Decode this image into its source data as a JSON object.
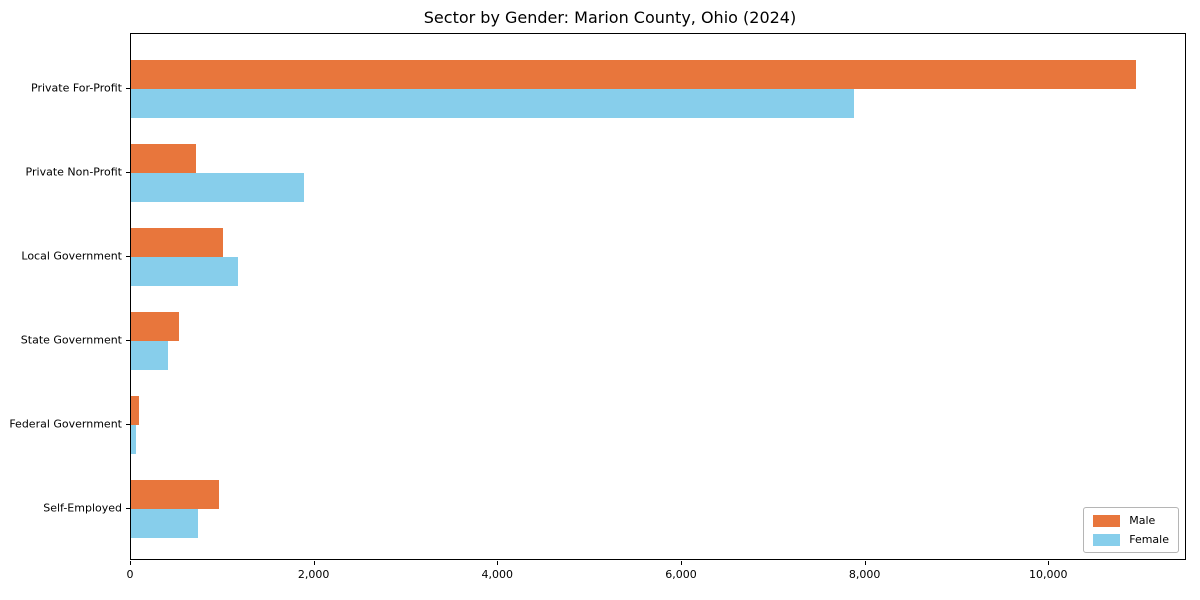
{
  "chart_data": {
    "type": "bar",
    "orientation": "horizontal",
    "title": "Sector by Gender: Marion County, Ohio (2024)",
    "categories": [
      "Private For-Profit",
      "Private Non-Profit",
      "Local Government",
      "State Government",
      "Federal Government",
      "Self-Employed"
    ],
    "series": [
      {
        "name": "Male",
        "color": "#e8763c",
        "values": [
          10940,
          710,
          1000,
          525,
          85,
          960
        ]
      },
      {
        "name": "Female",
        "color": "#87ceeb",
        "values": [
          7870,
          1880,
          1160,
          400,
          50,
          725
        ]
      }
    ],
    "xlim": [
      0,
      11500
    ],
    "xticks": [
      0,
      2000,
      4000,
      6000,
      8000,
      10000
    ],
    "xtick_labels": [
      "0",
      "2,000",
      "4,000",
      "6,000",
      "8,000",
      "10,000"
    ],
    "xlabel": "",
    "ylabel": "",
    "grid": false,
    "legend": {
      "position": "lower right",
      "entries": [
        "Male",
        "Female"
      ]
    },
    "colors": {
      "background": "#ffffff",
      "spine": "#000000",
      "text": "#000000",
      "legend_border": "#b5b5b5"
    }
  }
}
